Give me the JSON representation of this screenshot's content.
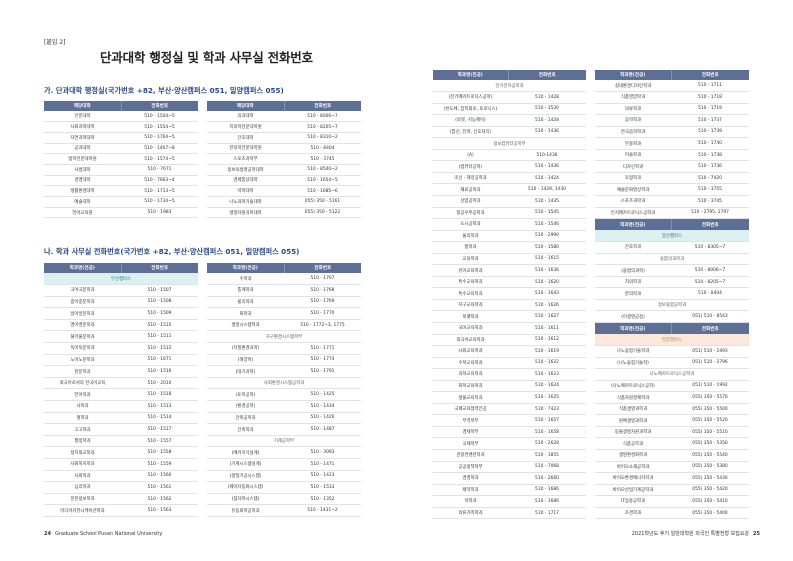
{
  "appendix_label": "[붙임 2]",
  "page_title": "단과대학 행정실 및 학과 사무실 전화번호",
  "section_a": {
    "title": "가. 단과대학 행정실(국가번호 +82, 부산·양산캠퍼스 051, 밀양캠퍼스 055)",
    "headers": [
      "해당대학",
      "전화번호"
    ],
    "table1": [
      [
        "인문대학",
        "510 - 1504~5"
      ],
      [
        "사회과학대학",
        "510 - 1554~5"
      ],
      [
        "자연과학대학",
        "510 - 1764~5"
      ],
      [
        "공과대학",
        "510 - 1407~8"
      ],
      [
        "법학전문대학원",
        "510 - 1574~5"
      ],
      [
        "사범대학",
        "510 - 7671"
      ],
      [
        "경영대학",
        "510 - 7663~4"
      ],
      [
        "생활환경대학",
        "510 - 1713~5"
      ],
      [
        "예술대학",
        "510 - 1734~5"
      ],
      [
        "언어교육원",
        "510 - 1983"
      ]
    ],
    "table2": [
      [
        "의과대학",
        "510 - 8006~7"
      ],
      [
        "치의학전문대학원",
        "510 - 8205~7"
      ],
      [
        "간호대학",
        "510 - 8310~2"
      ],
      [
        "한의학전문대학원",
        "510 - 8404"
      ],
      [
        "스포츠과학부",
        "510 - 3745"
      ],
      [
        "정보의생명공학대학",
        "510 - 8540~2"
      ],
      [
        "경제통상대학",
        "510 - 1654~5"
      ],
      [
        "약학대학",
        "510 - 1685~6"
      ],
      [
        "나노과학기술대학",
        "055) 350 - 5161"
      ],
      [
        "생명자원과학대학",
        "055) 350 - 5122"
      ]
    ]
  },
  "section_b": {
    "title": "나. 학과 사무실 전화번호(국가번호 +82, 부산·양산캠퍼스 051, 밀양캠퍼스 055)",
    "headers": [
      "학과명(전공)",
      "전화번호"
    ],
    "col1": [
      [
        "부산캠퍼스",
        "",
        "hl"
      ],
      [
        "국어국문학과",
        "510 - 1507"
      ],
      [
        "중어중문학과",
        "510 - 1508"
      ],
      [
        "일어일문학과",
        "510 - 1509"
      ],
      [
        "영어영문학과",
        "510 - 1510"
      ],
      [
        "불어불문학과",
        "510 - 1511"
      ],
      [
        "독어독문학과",
        "510 - 1512"
      ],
      [
        "노어노문학과",
        "510 - 1671"
      ],
      [
        "한문학과",
        "510 - 1516"
      ],
      [
        "외국어로서의 한국어교육",
        "510 - 2010"
      ],
      [
        "언어학과",
        "510 - 1518"
      ],
      [
        "사학과",
        "510 - 1513"
      ],
      [
        "철학과",
        "510 - 1514"
      ],
      [
        "고고학과",
        "510 - 1517"
      ],
      [
        "행정학과",
        "510 - 1557"
      ],
      [
        "정치외교학과",
        "510 - 1558"
      ],
      [
        "사회복지학과",
        "510 - 1559"
      ],
      [
        "사회학과",
        "510 - 1560"
      ],
      [
        "심리학과",
        "510 - 1561"
      ],
      [
        "문헌정보학과",
        "510 - 1562"
      ],
      [
        "미디어커뮤니케이션학과",
        "510 - 1563"
      ]
    ],
    "col2": [
      [
        "수학과",
        "510 - 1767"
      ],
      [
        "통계학과",
        "510 - 1768"
      ],
      [
        "물리학과",
        "510 - 1769"
      ],
      [
        "화학과",
        "510 - 1770"
      ],
      [
        "생명시스템학과",
        "510 - 1772~3, 1775"
      ],
      [
        "자구환경시스템학부",
        "",
        "g"
      ],
      [
        "(지질환경과학)",
        "510 - 1771"
      ],
      [
        "(해양학)",
        "510 - 1774"
      ],
      [
        "(대기과학)",
        "510 - 1791"
      ],
      [
        "사회환경시스템공학과",
        "",
        "g"
      ],
      [
        "(토목공학)",
        "510 - 1425"
      ],
      [
        "(환경공학)",
        "510 - 1434"
      ],
      [
        "건축공학과",
        "510 - 1426"
      ],
      [
        "건축학과",
        "510 - 1487"
      ],
      [
        "기계공학부",
        "",
        "g"
      ],
      [
        "(메카지식설계)",
        "510 - 3093"
      ],
      [
        "(기계시스템설계)",
        "510 - 1471"
      ],
      [
        "(정밀가공시스템)",
        "510 - 1423"
      ],
      [
        "(제어자동화시스템)",
        "510 - 1533"
      ],
      [
        "(점자학시스템)",
        "510 - 1352"
      ],
      [
        "유동화학공학과",
        "510 - 1431~2"
      ]
    ],
    "col3": [
      [
        "전기전자공학과",
        "",
        "g"
      ],
      [
        "(전기메카트로닉스공학)",
        "510 - 1428"
      ],
      [
        "(반도체, 집적회로, 토로닉스)",
        "510 - 3530"
      ],
      [
        "(로봇, 지능제어)",
        "510 - 1428"
      ],
      [
        "(통신, 전파, 신호처리)",
        "510 - 1436"
      ],
      [
        "정보컴퓨터공학부",
        "",
        "g"
      ],
      [
        "(A)",
        "510-1436"
      ],
      [
        "(컴퓨터공학)",
        "510 - 1436"
      ],
      [
        "조선 · 해양공학과",
        "510 - 1424"
      ],
      [
        "재료공학과",
        "510 - 1429, 1430"
      ],
      [
        "산업공학과",
        "510 - 1435"
      ],
      [
        "항공우주공학과",
        "510 - 1545"
      ],
      [
        "도시공학과",
        "510 - 1546"
      ],
      [
        "물리학과",
        "510 - 2990"
      ],
      [
        "법학과",
        "510 - 1580"
      ],
      [
        "교육학과",
        "510 - 1615"
      ],
      [
        "유아교육학과",
        "510 - 1636"
      ],
      [
        "특수교육학과",
        "510 - 1620"
      ],
      [
        "특수교육학과",
        "510 - 1643"
      ],
      [
        "지구교육학과",
        "510 - 1626"
      ],
      [
        "북펫학과",
        "510 - 1627"
      ],
      [
        "국어교육학과",
        "510 - 1611"
      ],
      [
        "외국어교육학과",
        "510 - 1612"
      ],
      [
        "사회교육학과",
        "510 - 1619"
      ],
      [
        "수학교육학과",
        "510 - 1622"
      ],
      [
        "과학교육학과",
        "510 - 1623"
      ],
      [
        "화학교육학과",
        "510 - 1624"
      ],
      [
        "생물교육학과",
        "510 - 1625"
      ],
      [
        "국제교육협력전공",
        "510 - 7423"
      ],
      [
        "무역학부",
        "510 - 1657"
      ],
      [
        "경제학부",
        "510 - 1658"
      ],
      [
        "국제학부",
        "510 - 2628"
      ],
      [
        "관광컨벤션학과",
        "510 - 1855"
      ],
      [
        "공공정책학부",
        "510 - 7068"
      ],
      [
        "경영학과",
        "510 - 2660"
      ],
      [
        "제약학과",
        "510 - 1686"
      ],
      [
        "약학과",
        "510 - 1686"
      ],
      [
        "의류가족학과",
        "510 - 1717"
      ]
    ],
    "col4": [
      [
        "실내환경디자인학과",
        "510 - 1711"
      ],
      [
        "식품영양학과",
        "510 - 1718"
      ],
      [
        "의류학과",
        "510 - 1719"
      ],
      [
        "음악학과",
        "510 - 1737"
      ],
      [
        "한국음악학과",
        "510 - 1739"
      ],
      [
        "무용학과",
        "510 - 1740"
      ],
      [
        "미술학과",
        "510 - 1738"
      ],
      [
        "디자인학과",
        "510 - 1736"
      ],
      [
        "조형학과",
        "510 - 7420"
      ],
      [
        "예술문화영상학과",
        "510 - 3755"
      ],
      [
        "스포츠과학과",
        "510 - 3745"
      ],
      [
        "인지메카트로닉스공학과",
        "510 - 2795, 2797"
      ],
      [
        "__head__",
        ""
      ],
      [
        "양산캠퍼스",
        "",
        "hl"
      ],
      [
        "간호학과",
        "510 - 8305~7"
      ],
      [
        "융합의과학과",
        "",
        "g"
      ],
      [
        "(융합의과학)",
        "510 - 8006~7"
      ],
      [
        "치의학과",
        "510 - 8205~7"
      ],
      [
        "한의학과",
        "510 - 8404"
      ],
      [
        "정보융합공학과",
        "",
        "g"
      ],
      [
        "(이생명공정)",
        "051) 510 - 8543"
      ],
      [
        "__head__",
        ""
      ],
      [
        "밀양캠퍼스",
        "",
        "or"
      ],
      [
        "나노융합기술학과",
        "051) 510 - 1993"
      ],
      [
        "(나노융합기술학)",
        "051) 510 - 2796"
      ],
      [
        "나노메카트로닉스공학과",
        "",
        "g"
      ],
      [
        "(나노메카트로닉스공학)",
        "051) 510 - 1992"
      ],
      [
        "식품자원경제학과",
        "055) 350 - 5570"
      ],
      [
        "식품생명과학과",
        "055) 350 - 5500"
      ],
      [
        "원예생명과학과",
        "055) 350 - 5520"
      ],
      [
        "동물생명자원과학과",
        "055) 350 - 5510"
      ],
      [
        "식품공학과",
        "055) 350 - 5350"
      ],
      [
        "생명환경화학과",
        "055) 350 - 5540"
      ],
      [
        "바이오소재공학과",
        "055) 350 - 5380"
      ],
      [
        "바이오환경에너지학과",
        "055) 350 - 5430"
      ],
      [
        "바이오산업기계공학과",
        "055) 350 - 5420"
      ],
      [
        "IT응용공학과",
        "055) 350 - 5410"
      ],
      [
        "조경학과",
        "055) 350 - 5400"
      ]
    ]
  },
  "footer": {
    "left_page": "24",
    "left_text": "Graduate School Pusan National University",
    "right_text": "2021학년도 후기 일반대학원 외국인 특별전형 모집요강",
    "right_page": "25"
  },
  "colors": {
    "header_bg": "#5d6e97",
    "section_title": "#2a4a86",
    "busan_highlight": "#dceff1",
    "miryang_highlight": "#fbe8da"
  }
}
